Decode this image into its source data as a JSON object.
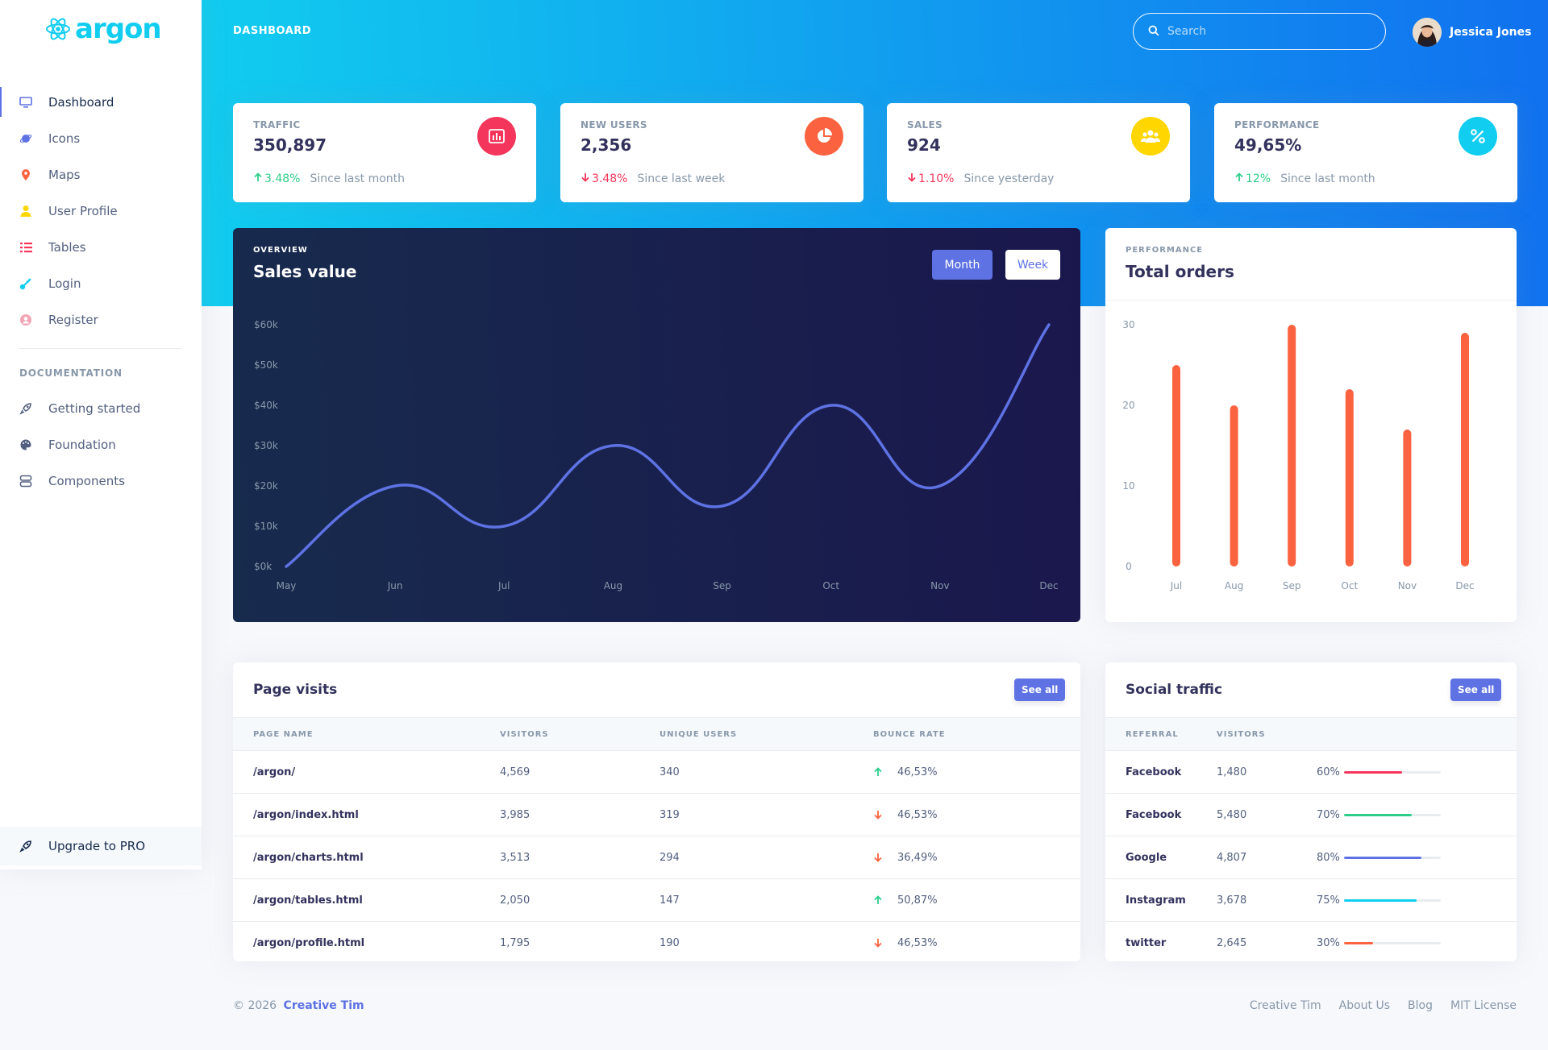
{
  "brand": {
    "name": "argon"
  },
  "header": {
    "title": "DASHBOARD",
    "search_placeholder": "Search",
    "user_name": "Jessica Jones"
  },
  "sidebar": {
    "items": [
      {
        "label": "Dashboard",
        "icon": "monitor-icon",
        "color": "#5e72e4"
      },
      {
        "label": "Icons",
        "icon": "planet-icon",
        "color": "#5e72e4"
      },
      {
        "label": "Maps",
        "icon": "pin-icon",
        "color": "#fb6340"
      },
      {
        "label": "User Profile",
        "icon": "user-icon",
        "color": "#ffd600"
      },
      {
        "label": "Tables",
        "icon": "bullet-list-icon",
        "color": "#f5365c"
      },
      {
        "label": "Login",
        "icon": "key-icon",
        "color": "#11cdef"
      },
      {
        "label": "Register",
        "icon": "circle-user-icon",
        "color": "#f3a4b5"
      }
    ],
    "doc_heading": "DOCUMENTATION",
    "doc_items": [
      {
        "label": "Getting started",
        "icon": "rocket-icon"
      },
      {
        "label": "Foundation",
        "icon": "palette-icon"
      },
      {
        "label": "Components",
        "icon": "grid-icon"
      }
    ],
    "upgrade": "Upgrade to PRO"
  },
  "stats": [
    {
      "label": "TRAFFIC",
      "value": "350,897",
      "pct": "3.48%",
      "dir": "up",
      "since": "Since last month",
      "icon": "chart-bar-icon",
      "color": "#f5365c"
    },
    {
      "label": "NEW USERS",
      "value": "2,356",
      "pct": "3.48%",
      "dir": "down",
      "since": "Since last week",
      "icon": "chart-pie-icon",
      "color": "#fb6340"
    },
    {
      "label": "SALES",
      "value": "924",
      "pct": "1.10%",
      "dir": "down",
      "since": "Since yesterday",
      "icon": "users-icon",
      "color": "#ffd600"
    },
    {
      "label": "PERFORMANCE",
      "value": "49,65%",
      "pct": "12%",
      "dir": "up",
      "since": "Since last month",
      "icon": "percent-icon",
      "color": "#11cdef"
    }
  ],
  "sales": {
    "overline": "OVERVIEW",
    "title": "Sales value",
    "btn_month": "Month",
    "btn_week": "Week"
  },
  "orders": {
    "overline": "PERFORMANCE",
    "title": "Total orders"
  },
  "chart_data": [
    {
      "type": "line",
      "title": "Sales value",
      "x": [
        "May",
        "Jun",
        "Jul",
        "Aug",
        "Sep",
        "Oct",
        "Nov",
        "Dec"
      ],
      "values": [
        0,
        20,
        10,
        30,
        15,
        40,
        20,
        60
      ],
      "y_ticks": [
        "$0k",
        "$10k",
        "$20k",
        "$30k",
        "$40k",
        "$50k",
        "$60k"
      ],
      "ylim": [
        0,
        60
      ],
      "line_color": "#5e72e4"
    },
    {
      "type": "bar",
      "title": "Total orders",
      "categories": [
        "Jul",
        "Aug",
        "Sep",
        "Oct",
        "Nov",
        "Dec"
      ],
      "values": [
        25,
        20,
        30,
        22,
        17,
        29
      ],
      "y_ticks": [
        "0",
        "10",
        "20",
        "30"
      ],
      "ylim": [
        0,
        30
      ],
      "bar_color": "#fb6340"
    }
  ],
  "page_visits": {
    "title": "Page visits",
    "see_all": "See all",
    "columns": [
      "PAGE NAME",
      "VISITORS",
      "UNIQUE USERS",
      "BOUNCE RATE"
    ],
    "rows": [
      {
        "page": "/argon/",
        "visitors": "4,569",
        "unique": "340",
        "bounce": "46,53%",
        "dir": "up"
      },
      {
        "page": "/argon/index.html",
        "visitors": "3,985",
        "unique": "319",
        "bounce": "46,53%",
        "dir": "down"
      },
      {
        "page": "/argon/charts.html",
        "visitors": "3,513",
        "unique": "294",
        "bounce": "36,49%",
        "dir": "down"
      },
      {
        "page": "/argon/tables.html",
        "visitors": "2,050",
        "unique": "147",
        "bounce": "50,87%",
        "dir": "up"
      },
      {
        "page": "/argon/profile.html",
        "visitors": "1,795",
        "unique": "190",
        "bounce": "46,53%",
        "dir": "down"
      }
    ]
  },
  "social": {
    "title": "Social traffic",
    "see_all": "See all",
    "columns": [
      "REFERRAL",
      "VISITORS",
      ""
    ],
    "rows": [
      {
        "referral": "Facebook",
        "visitors": "1,480",
        "pct": "60%",
        "value": 60,
        "color": "#f5365c"
      },
      {
        "referral": "Facebook",
        "visitors": "5,480",
        "pct": "70%",
        "value": 70,
        "color": "#2dce89"
      },
      {
        "referral": "Google",
        "visitors": "4,807",
        "pct": "80%",
        "value": 80,
        "color": "#5e72e4"
      },
      {
        "referral": "Instagram",
        "visitors": "3,678",
        "pct": "75%",
        "value": 75,
        "color": "#11cdef"
      },
      {
        "referral": "twitter",
        "visitors": "2,645",
        "pct": "30%",
        "value": 30,
        "color": "#fb6340"
      }
    ]
  },
  "footer": {
    "copyright": "© 2026",
    "company": "Creative Tim",
    "links": [
      "Creative Tim",
      "About Us",
      "Blog",
      "MIT License"
    ]
  }
}
